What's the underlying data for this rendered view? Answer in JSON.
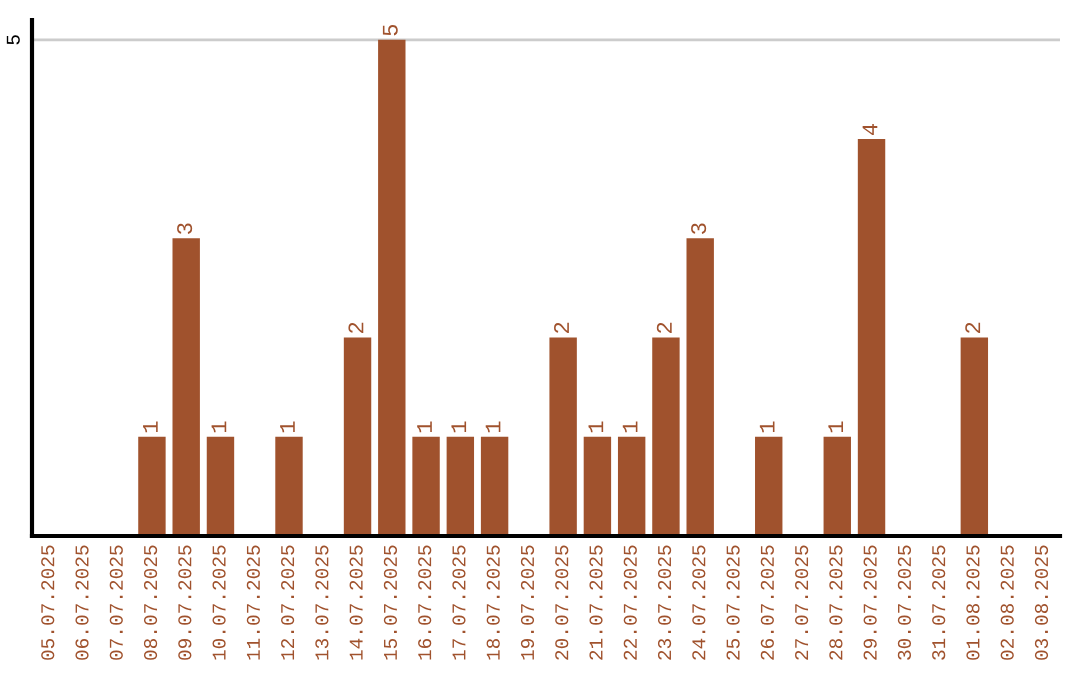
{
  "chart_data": {
    "type": "bar",
    "categories": [
      "05.07.2025",
      "06.07.2025",
      "07.07.2025",
      "08.07.2025",
      "09.07.2025",
      "10.07.2025",
      "11.07.2025",
      "12.07.2025",
      "13.07.2025",
      "14.07.2025",
      "15.07.2025",
      "16.07.2025",
      "17.07.2025",
      "18.07.2025",
      "19.07.2025",
      "20.07.2025",
      "21.07.2025",
      "22.07.2025",
      "23.07.2025",
      "24.07.2025",
      "25.07.2025",
      "26.07.2025",
      "27.07.2025",
      "28.07.2025",
      "29.07.2025",
      "30.07.2025",
      "31.07.2025",
      "01.08.2025",
      "02.08.2025",
      "03.08.2025"
    ],
    "values": [
      0,
      0,
      0,
      1,
      3,
      1,
      0,
      1,
      0,
      2,
      5,
      1,
      1,
      1,
      0,
      2,
      1,
      1,
      2,
      3,
      0,
      1,
      0,
      1,
      4,
      0,
      0,
      2,
      0,
      0
    ],
    "value_labels": [
      null,
      null,
      null,
      "1",
      "3",
      "1",
      null,
      "1",
      null,
      "2",
      "5",
      "1",
      "1",
      "1",
      null,
      "2",
      "1",
      "1",
      "2",
      "3",
      null,
      "1",
      null,
      "1",
      "4",
      null,
      null,
      "2",
      null,
      null
    ],
    "color": "#a0522d",
    "ylim": [
      0,
      5.2
    ],
    "yticks": [
      5
    ],
    "grid": "y"
  }
}
